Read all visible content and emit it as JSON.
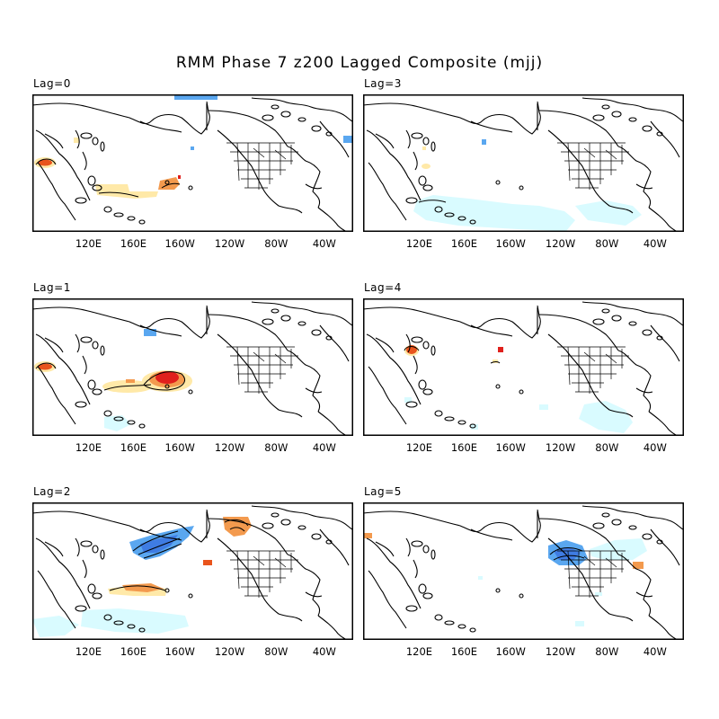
{
  "title": "RMM Phase 7 z200 Lagged Composite (mjj)",
  "x_tick_labels": [
    "120E",
    "160E",
    "160W",
    "120W",
    "80W",
    "40W"
  ],
  "colors": {
    "light_blue": "#d9fbff",
    "mid_blue": "#5aa7f0",
    "dark_blue": "#3f7ce3",
    "light_yellow": "#ffe9a8",
    "orange": "#f39a4e",
    "red_orange": "#e9541c",
    "red": "#e0201c"
  },
  "panels": [
    {
      "id": "lag0",
      "label": "Lag=0"
    },
    {
      "id": "lag3",
      "label": "Lag=3"
    },
    {
      "id": "lag1",
      "label": "Lag=1"
    },
    {
      "id": "lag4",
      "label": "Lag=4"
    },
    {
      "id": "lag2",
      "label": "Lag=2"
    },
    {
      "id": "lag5",
      "label": "Lag=5"
    }
  ]
}
